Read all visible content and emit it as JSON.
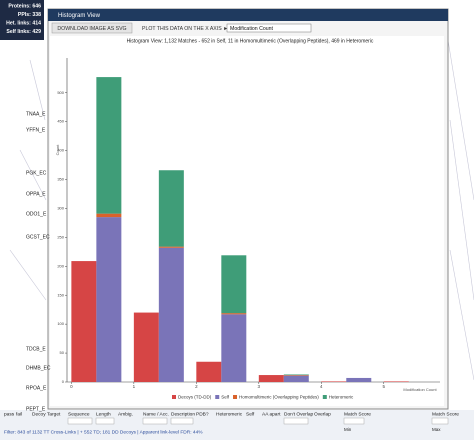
{
  "stats": [
    "Proteins: 646",
    "PPIs: 338",
    "Het. links: 414",
    "Self links: 429"
  ],
  "network_labels": [
    "TNAA_E",
    "YFFN_E",
    "PGK_EC",
    "OPPA_E",
    "ODO1_E",
    "GCST_EC",
    "TDCB_E",
    "DHMB_EC",
    "RPOA_E",
    "PEPT_E"
  ],
  "window": {
    "title": "Histogram View",
    "download_button": "DOWNLOAD IMAGE AS SVG",
    "plot_button": "PLOT THIS DATA ON THE X AXIS ►",
    "axis_select": "Modification Count"
  },
  "chart_data": {
    "type": "bar",
    "title": "Histogram View: 1,132 Matches - 652 in Self, 11 in Homomultimeric (Overlapping Peptides), 469 in Heteromeric",
    "y_label": "Count",
    "x_label": "Modification Count",
    "x": [
      0,
      1,
      2,
      3,
      4,
      5
    ],
    "series": [
      {
        "name": "Decoys (TD-DD)",
        "color": "#d64545",
        "values": [
          209,
          120,
          35,
          12,
          1,
          1
        ]
      },
      {
        "name": "Self",
        "color": "#7a74b8",
        "values": [
          285,
          232,
          117,
          11,
          7,
          0
        ]
      },
      {
        "name": "Homomultimeric (Overlapping Peptides)",
        "color": "#d9622b",
        "values": [
          6,
          2,
          2,
          1,
          0,
          0
        ]
      },
      {
        "name": "Heteromeric",
        "color": "#3f9d78",
        "values": [
          236,
          132,
          100,
          1,
          0,
          0
        ]
      }
    ],
    "xlim": [
      -0.07,
      5.9
    ],
    "xticks": [
      0,
      1,
      2,
      3,
      4,
      5
    ],
    "ylim": [
      0,
      560
    ],
    "yticks": [
      0,
      50,
      100,
      150,
      200,
      250,
      300,
      350,
      400,
      450,
      500
    ]
  },
  "toolbar": {
    "items": [
      "pass",
      "fail",
      "Decoy",
      "Target",
      "Sequence",
      "Length",
      "Ambig.",
      "Name / Acc.",
      "Description",
      "PDB?",
      "Heteromeric",
      "Self",
      "AA apart",
      "Don't Overlap",
      "Overlap",
      "Match Score",
      "Match Score"
    ],
    "controls": [
      "Min",
      "Max"
    ],
    "filter_text": "Filter: 843 of 1132 TT Cross-Links | + 552 TD; 181 DD Decoys | Apparent link-level FDR: 44%"
  }
}
